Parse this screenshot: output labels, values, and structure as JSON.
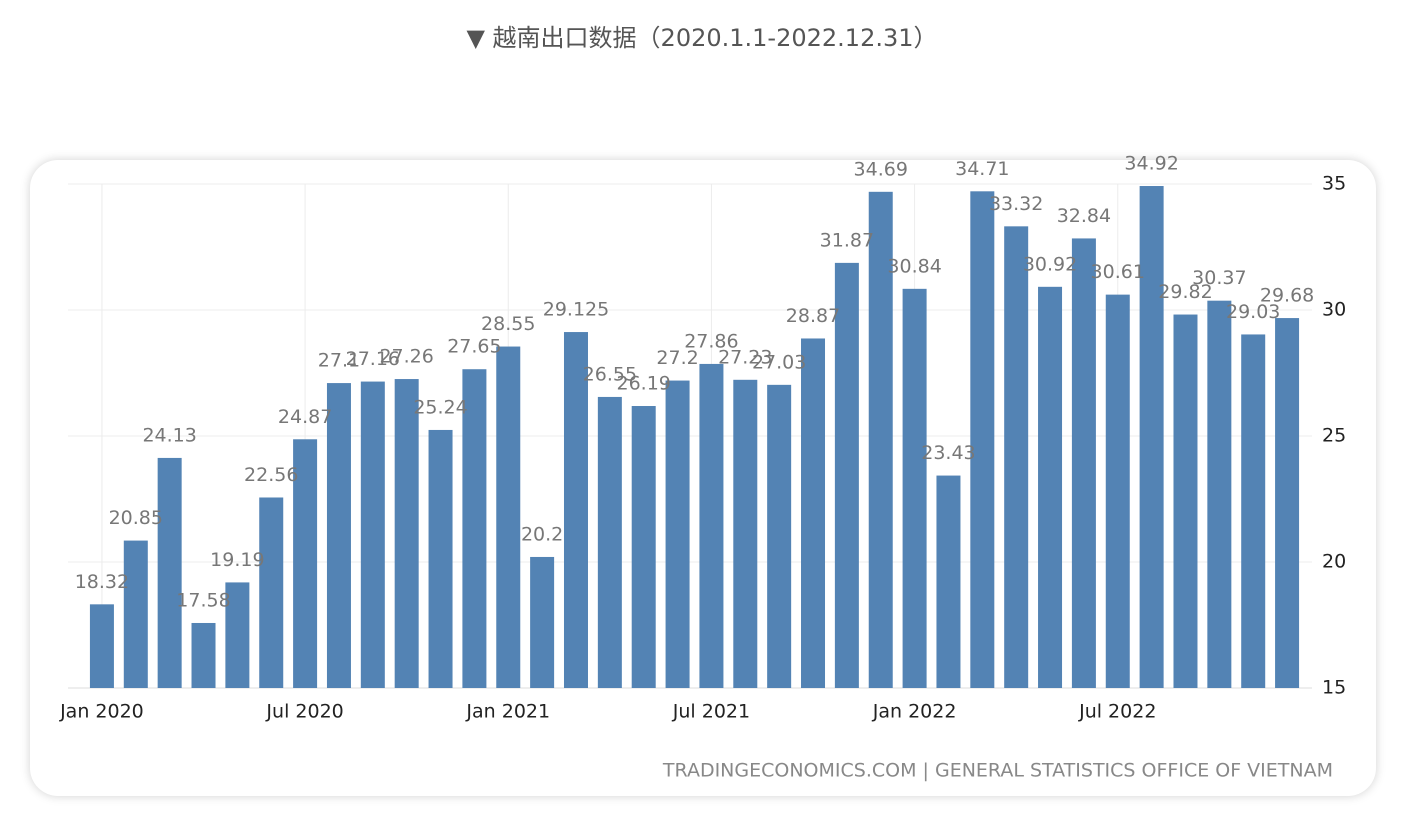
{
  "chart_data": {
    "type": "bar",
    "title": "▼ 越南出口数据（2020.1.1-2022.12.31）",
    "source": "TRADINGECONOMICS.COM | GENERAL STATISTICS OFFICE OF VIETNAM",
    "categories": [
      "Jan 2020",
      null,
      null,
      null,
      null,
      null,
      "Jul 2020",
      null,
      null,
      null,
      null,
      null,
      "Jan 2021",
      null,
      null,
      null,
      null,
      null,
      "Jul 2021",
      null,
      null,
      null,
      null,
      null,
      "Jan 2022",
      null,
      null,
      null,
      null,
      null,
      "Jul 2022",
      null,
      null,
      null,
      null,
      null
    ],
    "values": [
      18.32,
      20.85,
      24.13,
      17.58,
      19.19,
      22.56,
      24.87,
      27.1,
      27.16,
      27.26,
      25.24,
      27.65,
      28.55,
      20.2,
      29.125,
      26.55,
      26.19,
      27.2,
      27.86,
      27.23,
      27.03,
      28.87,
      31.87,
      34.69,
      30.84,
      23.43,
      34.71,
      33.32,
      30.92,
      32.84,
      30.61,
      34.92,
      29.82,
      30.37,
      29.03,
      29.68
    ],
    "color": "#5383b4",
    "ylim": [
      15,
      35
    ],
    "yticks": [
      15,
      20,
      25,
      30,
      35
    ],
    "grid": true
  }
}
